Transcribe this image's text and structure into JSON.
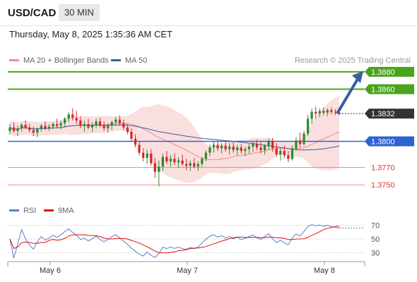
{
  "header": {
    "symbol": "USD/CAD",
    "timeframe": "30 MIN",
    "timestamp": "Thursday, May 8, 2025 1:35:36 AM CET"
  },
  "legend": {
    "ma20_label": "MA 20 + Bollinger Bands",
    "ma50_label": "MA 50",
    "credit": "Research © 2025 Trading Central"
  },
  "rsi_legend": {
    "rsi_label": "RSI",
    "ma9_label": "9MA"
  },
  "colors": {
    "candle_up": "#2e8b2e",
    "candle_down": "#d42a2a",
    "bollinger_fill": "#f7c9c9",
    "ma20": "#f08a8a",
    "ma50": "#3a5f9e",
    "green_level": "#4aa31c",
    "blue_level": "#2e62d4",
    "red_level": "#f08a8a",
    "current": "#333333",
    "rsi": "#5b7fd1",
    "rsi_ma": "#e01010"
  },
  "chart_data": [
    {
      "type": "candlestick",
      "title": "USD/CAD",
      "xlabel": "",
      "ylabel": "",
      "x_ticks": [
        "May 6",
        "May 7",
        "May 8"
      ],
      "ylim": [
        1.3738,
        1.3888
      ],
      "candles_ohlc": [
        [
          1.3812,
          1.382,
          1.3808,
          1.3816
        ],
        [
          1.3816,
          1.3822,
          1.381,
          1.3812
        ],
        [
          1.3812,
          1.3818,
          1.3806,
          1.3815
        ],
        [
          1.3815,
          1.3821,
          1.3811,
          1.3819
        ],
        [
          1.3819,
          1.3824,
          1.3814,
          1.3816
        ],
        [
          1.3816,
          1.382,
          1.381,
          1.3813
        ],
        [
          1.3813,
          1.3817,
          1.3806,
          1.381
        ],
        [
          1.381,
          1.3816,
          1.3805,
          1.3814
        ],
        [
          1.3814,
          1.382,
          1.3811,
          1.3818
        ],
        [
          1.3818,
          1.3823,
          1.3813,
          1.3815
        ],
        [
          1.3815,
          1.382,
          1.3812,
          1.3817
        ],
        [
          1.3817,
          1.3822,
          1.3814,
          1.382
        ],
        [
          1.382,
          1.3826,
          1.3815,
          1.3818
        ],
        [
          1.3818,
          1.3824,
          1.3814,
          1.3821
        ],
        [
          1.3821,
          1.3828,
          1.3817,
          1.3826
        ],
        [
          1.3826,
          1.3834,
          1.3822,
          1.3831
        ],
        [
          1.3831,
          1.3838,
          1.3824,
          1.3827
        ],
        [
          1.3827,
          1.3835,
          1.382,
          1.3824
        ],
        [
          1.3824,
          1.3829,
          1.3815,
          1.3818
        ],
        [
          1.3818,
          1.3824,
          1.3811,
          1.382
        ],
        [
          1.382,
          1.3826,
          1.3814,
          1.3816
        ],
        [
          1.3816,
          1.3822,
          1.3811,
          1.3819
        ],
        [
          1.3819,
          1.3826,
          1.3815,
          1.3823
        ],
        [
          1.3823,
          1.3827,
          1.3816,
          1.3818
        ],
        [
          1.3818,
          1.3823,
          1.3812,
          1.3815
        ],
        [
          1.3815,
          1.3821,
          1.381,
          1.3818
        ],
        [
          1.3818,
          1.3824,
          1.3813,
          1.3822
        ],
        [
          1.3822,
          1.3828,
          1.3818,
          1.3825
        ],
        [
          1.3825,
          1.383,
          1.3818,
          1.3821
        ],
        [
          1.3821,
          1.3825,
          1.3813,
          1.3816
        ],
        [
          1.3816,
          1.382,
          1.3808,
          1.3811
        ],
        [
          1.3811,
          1.3815,
          1.38,
          1.3803
        ],
        [
          1.3803,
          1.3808,
          1.3793,
          1.3796
        ],
        [
          1.3796,
          1.38,
          1.3784,
          1.3787
        ],
        [
          1.3787,
          1.3792,
          1.3777,
          1.3781
        ],
        [
          1.3781,
          1.379,
          1.3774,
          1.3786
        ],
        [
          1.3786,
          1.3791,
          1.3772,
          1.3775
        ],
        [
          1.3775,
          1.3781,
          1.3758,
          1.3765
        ],
        [
          1.3765,
          1.3778,
          1.3748,
          1.3771
        ],
        [
          1.3771,
          1.3786,
          1.3766,
          1.3782
        ],
        [
          1.3782,
          1.3789,
          1.3774,
          1.3777
        ],
        [
          1.3777,
          1.3784,
          1.3771,
          1.378
        ],
        [
          1.378,
          1.3786,
          1.3773,
          1.3776
        ],
        [
          1.3776,
          1.3782,
          1.3769,
          1.3778
        ],
        [
          1.3778,
          1.3785,
          1.3772,
          1.3774
        ],
        [
          1.3774,
          1.378,
          1.3767,
          1.3772
        ],
        [
          1.3772,
          1.3778,
          1.3766,
          1.3775
        ],
        [
          1.3775,
          1.3781,
          1.3769,
          1.3771
        ],
        [
          1.3771,
          1.3777,
          1.3766,
          1.3774
        ],
        [
          1.3774,
          1.3782,
          1.3771,
          1.378
        ],
        [
          1.378,
          1.379,
          1.3777,
          1.3787
        ],
        [
          1.3787,
          1.3796,
          1.3783,
          1.3793
        ],
        [
          1.3793,
          1.38,
          1.3787,
          1.3796
        ],
        [
          1.3796,
          1.38,
          1.3789,
          1.3792
        ],
        [
          1.3792,
          1.3798,
          1.3786,
          1.3795
        ],
        [
          1.3795,
          1.38,
          1.3788,
          1.3791
        ],
        [
          1.3791,
          1.3798,
          1.3785,
          1.3794
        ],
        [
          1.3794,
          1.3799,
          1.3787,
          1.379
        ],
        [
          1.379,
          1.3796,
          1.3784,
          1.3793
        ],
        [
          1.3793,
          1.3797,
          1.3786,
          1.3789
        ],
        [
          1.3789,
          1.3794,
          1.3783,
          1.3791
        ],
        [
          1.3791,
          1.3797,
          1.3786,
          1.3794
        ],
        [
          1.3794,
          1.38,
          1.3788,
          1.3797
        ],
        [
          1.3797,
          1.3802,
          1.379,
          1.3793
        ],
        [
          1.3793,
          1.3799,
          1.3786,
          1.379
        ],
        [
          1.379,
          1.3797,
          1.3785,
          1.3795
        ],
        [
          1.3795,
          1.3803,
          1.379,
          1.38
        ],
        [
          1.38,
          1.3804,
          1.3788,
          1.3792
        ],
        [
          1.3792,
          1.3798,
          1.3782,
          1.3785
        ],
        [
          1.3785,
          1.3792,
          1.3778,
          1.3789
        ],
        [
          1.3789,
          1.3795,
          1.3781,
          1.3784
        ],
        [
          1.3784,
          1.3789,
          1.3776,
          1.378
        ],
        [
          1.378,
          1.3795,
          1.3778,
          1.3792
        ],
        [
          1.3792,
          1.3805,
          1.3789,
          1.3801
        ],
        [
          1.3801,
          1.381,
          1.3793,
          1.3797
        ],
        [
          1.3797,
          1.3812,
          1.3795,
          1.3809
        ],
        [
          1.3809,
          1.383,
          1.3806,
          1.3826
        ],
        [
          1.3826,
          1.3838,
          1.382,
          1.3834
        ],
        [
          1.3834,
          1.384,
          1.3826,
          1.3832
        ],
        [
          1.3832,
          1.3838,
          1.3828,
          1.3835
        ],
        [
          1.3835,
          1.3839,
          1.383,
          1.3833
        ],
        [
          1.3833,
          1.3838,
          1.3829,
          1.3836
        ],
        [
          1.3836,
          1.3839,
          1.3831,
          1.3834
        ],
        [
          1.3834,
          1.3837,
          1.383,
          1.3833
        ],
        [
          1.3833,
          1.3836,
          1.383,
          1.3832
        ]
      ],
      "levels": [
        {
          "value": 1.388,
          "label": "1.3880",
          "kind": "green"
        },
        {
          "value": 1.386,
          "label": "1.3860",
          "kind": "green"
        },
        {
          "value": 1.3832,
          "label": "1.3832",
          "kind": "current"
        },
        {
          "value": 1.38,
          "label": "1.3800",
          "kind": "blue"
        },
        {
          "value": 1.377,
          "label": "1.3770",
          "kind": "red"
        },
        {
          "value": 1.375,
          "label": "1.3750",
          "kind": "red"
        }
      ],
      "forecast_arrow": {
        "from": 1.3832,
        "to": 1.388
      }
    },
    {
      "type": "line",
      "title": "RSI",
      "ylim": [
        20,
        80
      ],
      "y_ticks": [
        "70",
        "50",
        "30"
      ],
      "series": [
        {
          "name": "RSI"
        },
        {
          "name": "9MA"
        }
      ]
    }
  ]
}
